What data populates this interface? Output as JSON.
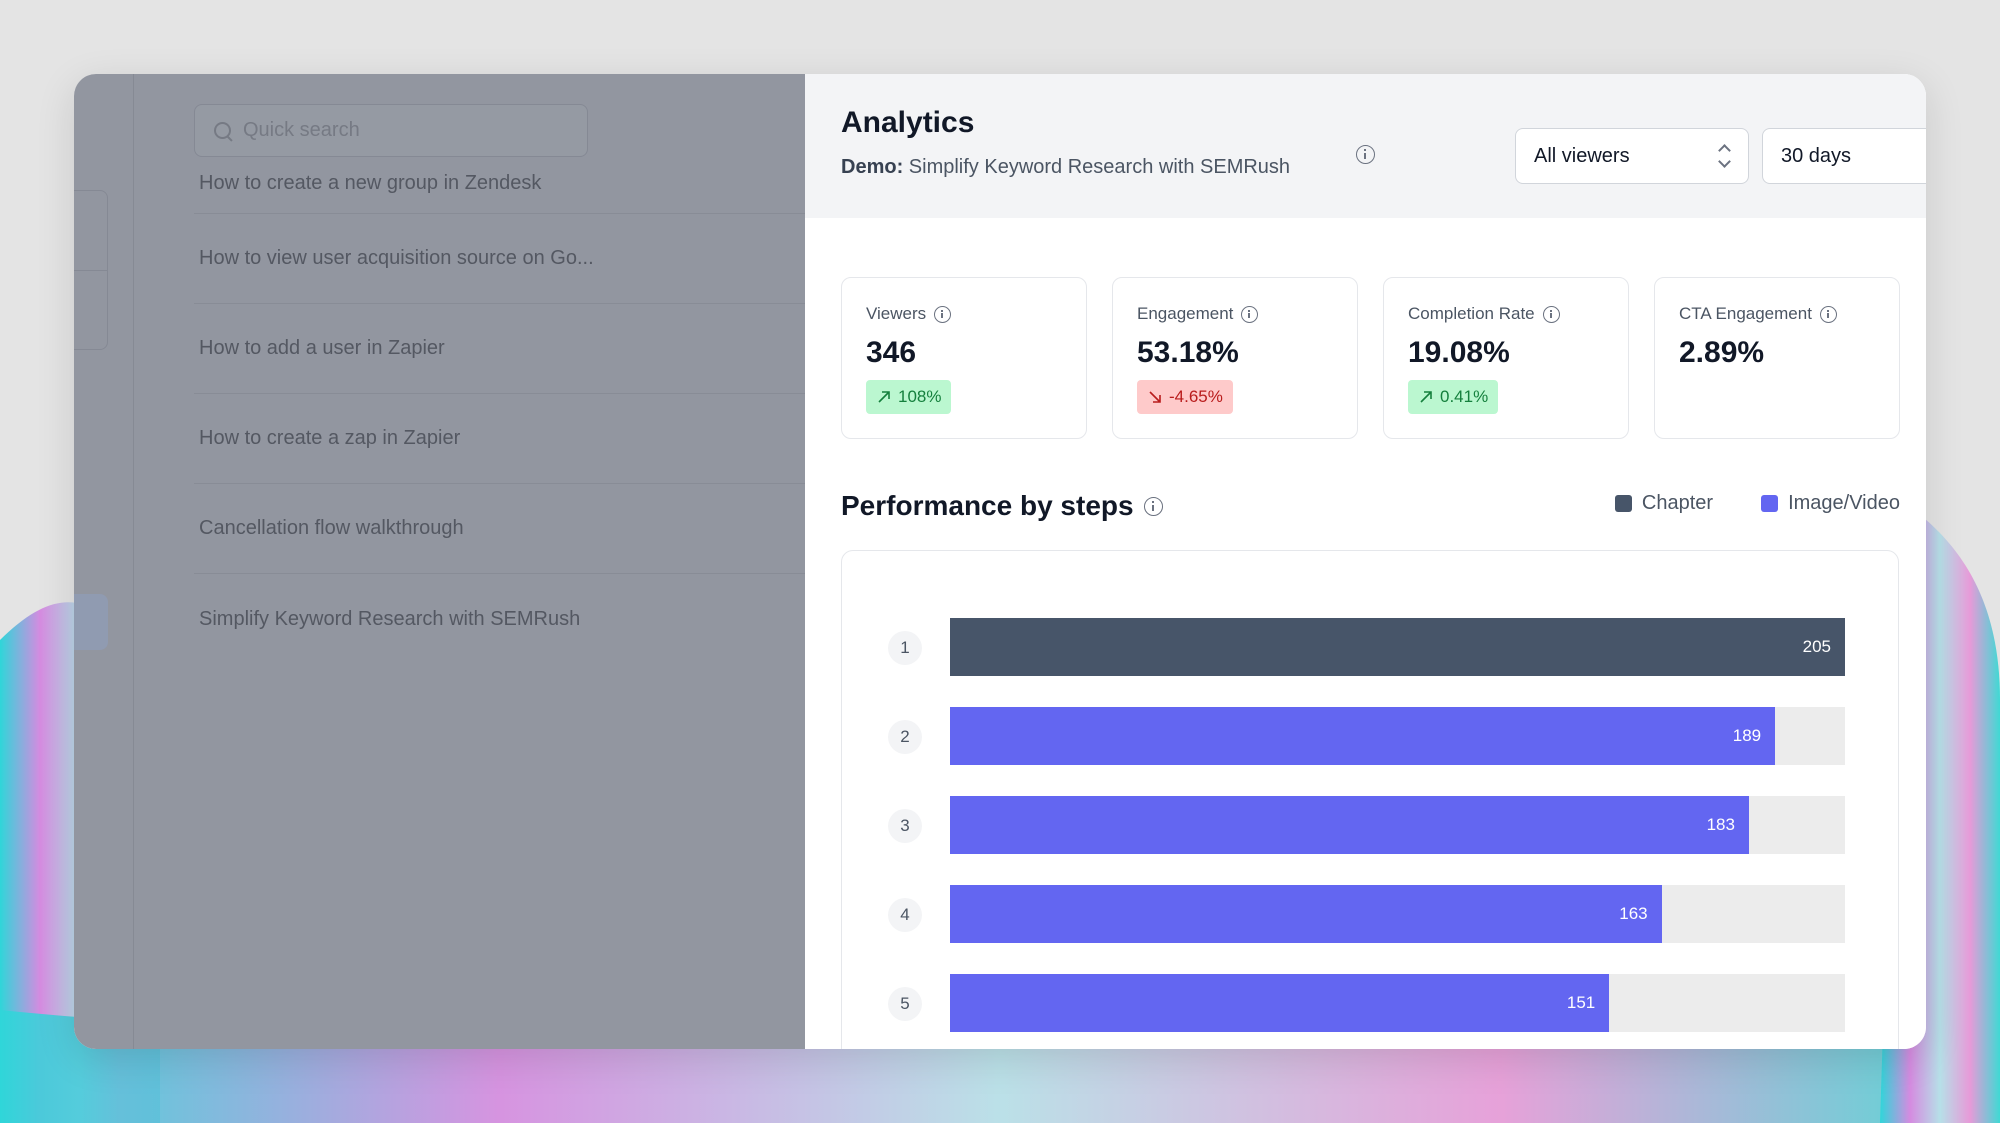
{
  "colors": {
    "chapter": "#475569",
    "image_video": "#6366f1",
    "gift_green": "#16a34a"
  },
  "left_panel": {
    "search_placeholder": "Quick search",
    "guides": [
      "How to create a new group in Zendesk",
      "How to view user acquisition source on Go...",
      "How to add a user in Zapier",
      "How to create a zap in Zapier",
      "Cancellation flow walkthrough",
      "Simplify Keyword Research with SEMRush"
    ]
  },
  "header": {
    "title": "Analytics",
    "subtitle_prefix": "Demo:",
    "subtitle": "Simplify Keyword Research with SEMRush",
    "viewers_select": "All viewers",
    "days_select": "30 days"
  },
  "stats": [
    {
      "label": "Viewers",
      "value": "346",
      "change": "108%",
      "trend": "up"
    },
    {
      "label": "Engagement",
      "value": "53.18%",
      "change": "-4.65%",
      "trend": "down"
    },
    {
      "label": "Completion Rate",
      "value": "19.08%",
      "change": "0.41%",
      "trend": "up"
    },
    {
      "label": "CTA Engagement",
      "value": "2.89%",
      "change": "",
      "trend": "none"
    }
  ],
  "performance": {
    "title": "Performance by steps",
    "legend": [
      "Chapter",
      "Image/Video"
    ]
  },
  "chart_data": {
    "type": "bar",
    "orientation": "horizontal",
    "categories": [
      "1",
      "2",
      "3",
      "4",
      "5"
    ],
    "values": [
      205,
      189,
      183,
      163,
      151
    ],
    "kinds": [
      "Chapter",
      "Image/Video",
      "Image/Video",
      "Image/Video",
      "Image/Video"
    ],
    "xlim": [
      0,
      205
    ]
  }
}
